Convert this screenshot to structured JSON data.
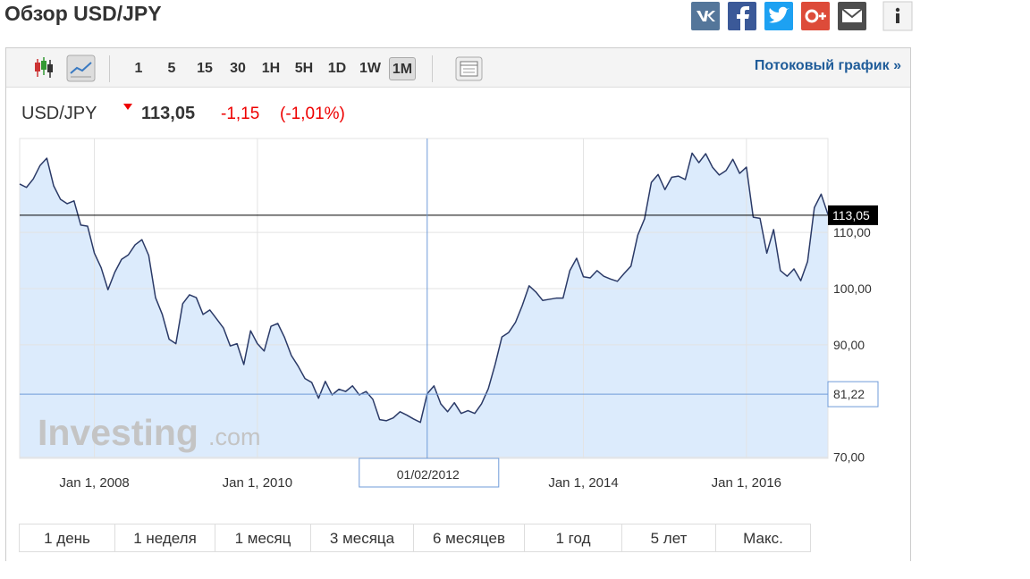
{
  "header": {
    "title": "Обзор USD/JPY"
  },
  "toolbar": {
    "intervals": [
      "1",
      "5",
      "15",
      "30",
      "1H",
      "5H",
      "1D",
      "1W",
      "1M"
    ],
    "stream_link": "Потоковый график »"
  },
  "quote": {
    "symbol": "USD/JPY",
    "price": "113,05",
    "change": "-1,15",
    "change_percent": "(-1,01%)"
  },
  "chart_data": {
    "type": "line",
    "watermark": [
      "Investing",
      ".com"
    ],
    "x": [
      "2007-02",
      "2007-03",
      "2007-04",
      "2007-05",
      "2007-06",
      "2007-07",
      "2007-08",
      "2007-09",
      "2007-10",
      "2007-11",
      "2007-12",
      "2008-01",
      "2008-02",
      "2008-03",
      "2008-04",
      "2008-05",
      "2008-06",
      "2008-07",
      "2008-08",
      "2008-09",
      "2008-10",
      "2008-11",
      "2008-12",
      "2009-01",
      "2009-02",
      "2009-03",
      "2009-04",
      "2009-05",
      "2009-06",
      "2009-07",
      "2009-08",
      "2009-09",
      "2009-10",
      "2009-11",
      "2009-12",
      "2010-01",
      "2010-02",
      "2010-03",
      "2010-04",
      "2010-05",
      "2010-06",
      "2010-07",
      "2010-08",
      "2010-09",
      "2010-10",
      "2010-11",
      "2010-12",
      "2011-01",
      "2011-02",
      "2011-03",
      "2011-04",
      "2011-05",
      "2011-06",
      "2011-07",
      "2011-08",
      "2011-09",
      "2011-10",
      "2011-11",
      "2011-12",
      "2012-01",
      "2012-02",
      "2012-03",
      "2012-04",
      "2012-05",
      "2012-06",
      "2012-07",
      "2012-08",
      "2012-09",
      "2012-10",
      "2012-11",
      "2012-12",
      "2013-01",
      "2013-02",
      "2013-03",
      "2013-04",
      "2013-05",
      "2013-06",
      "2013-07",
      "2013-08",
      "2013-09",
      "2013-10",
      "2013-11",
      "2013-12",
      "2014-01",
      "2014-02",
      "2014-03",
      "2014-04",
      "2014-05",
      "2014-06",
      "2014-07",
      "2014-08",
      "2014-09",
      "2014-10",
      "2014-11",
      "2014-12",
      "2015-01",
      "2015-02",
      "2015-03",
      "2015-04",
      "2015-05",
      "2015-06",
      "2015-07",
      "2015-08",
      "2015-09",
      "2015-10",
      "2015-11",
      "2015-12",
      "2016-01",
      "2016-02",
      "2016-03",
      "2016-04",
      "2016-05",
      "2016-06",
      "2016-07",
      "2016-08",
      "2016-09",
      "2016-10",
      "2016-11",
      "2016-12",
      "2017-01"
    ],
    "values": [
      118.6,
      118,
      119.5,
      121.9,
      123.2,
      118.3,
      115.9,
      115.1,
      115.6,
      111.3,
      111.1,
      106.3,
      103.7,
      99.8,
      102.9,
      105.2,
      106,
      107.8,
      108.7,
      105.9,
      98.4,
      95.4,
      91,
      90.2,
      97.3,
      98.9,
      98.4,
      95.4,
      96.2,
      94.6,
      93,
      89.8,
      90.2,
      86.5,
      92.5,
      90.2,
      88.9,
      93.3,
      93.8,
      91.3,
      88.1,
      86.2,
      84,
      83.3,
      80.5,
      83.5,
      81.1,
      82.1,
      81.7,
      82.7,
      81.1,
      81.7,
      80.3,
      76.7,
      76.5,
      77,
      78.1,
      77.5,
      76.8,
      76.2,
      81.3,
      82.7,
      79.5,
      78.1,
      79.7,
      77.8,
      78.3,
      77.8,
      79.5,
      82.2,
      86.5,
      91.4,
      92.2,
      94,
      97,
      100.5,
      99.4,
      97.9,
      98.1,
      98.3,
      98.3,
      103.2,
      105.4,
      102.1,
      101.9,
      103.2,
      102.2,
      101.7,
      101.3,
      102.7,
      104,
      109.5,
      112.4,
      118.9,
      120.3,
      117.6,
      119.8,
      120,
      119.4,
      124.1,
      122.4,
      124,
      121.6,
      120.2,
      121,
      123,
      120.5,
      121.6,
      112.7,
      112.5,
      106.3,
      110.5,
      103.2,
      102.2,
      103.5,
      101.4,
      104.8,
      114.4,
      116.8,
      113.2
    ],
    "color": "#2b3a67",
    "area_color": "#dcebfc",
    "xlim": [
      "2007-02",
      "2017-01"
    ],
    "xticks": [
      {
        "value": "2008-01",
        "label": "Jan 1, 2008"
      },
      {
        "value": "2010-01",
        "label": "Jan 1, 2010"
      },
      {
        "value": "2014-01",
        "label": "Jan 1, 2014"
      },
      {
        "value": "2016-01",
        "label": "Jan 1, 2016"
      }
    ],
    "ylim": [
      69.8,
      126.7
    ],
    "yticks": [
      {
        "value": 70,
        "label": "70,00"
      },
      {
        "value": 90,
        "label": "90,00"
      },
      {
        "value": 100,
        "label": "100,00"
      },
      {
        "value": 110,
        "label": "110,00"
      }
    ],
    "grid": true,
    "last_price": {
      "value": 113.05,
      "label": "113,05"
    },
    "crosshair": {
      "x": "2012-02",
      "x_label": "01/02/2012",
      "value": 81.22,
      "value_label": "81,22"
    }
  },
  "range_buttons": [
    "1 день",
    "1 неделя",
    "1 месяц",
    "3 месяца",
    "6 месяцев",
    "1 год",
    "5 лет",
    "Макс."
  ]
}
